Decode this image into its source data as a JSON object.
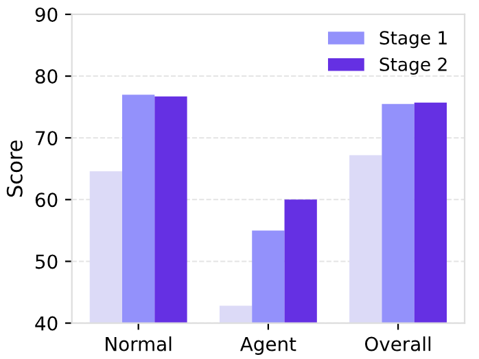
{
  "chart_data": {
    "type": "bar",
    "ylabel": "Score",
    "categories": [
      "Normal",
      "Agent",
      "Overall"
    ],
    "series": [
      {
        "color": "#dcdaf7",
        "values": [
          64.6,
          42.8,
          67.2
        ]
      },
      {
        "name": "Stage 1",
        "color": "#9391fb",
        "values": [
          77.0,
          55.0,
          75.5
        ]
      },
      {
        "name": "Stage 2",
        "color": "#6530e3",
        "values": [
          76.7,
          60.0,
          75.7
        ]
      }
    ],
    "ylim": [
      40,
      90
    ],
    "yticks": [
      40,
      50,
      60,
      70,
      80,
      90
    ],
    "grid": "y",
    "legend": "top right"
  }
}
